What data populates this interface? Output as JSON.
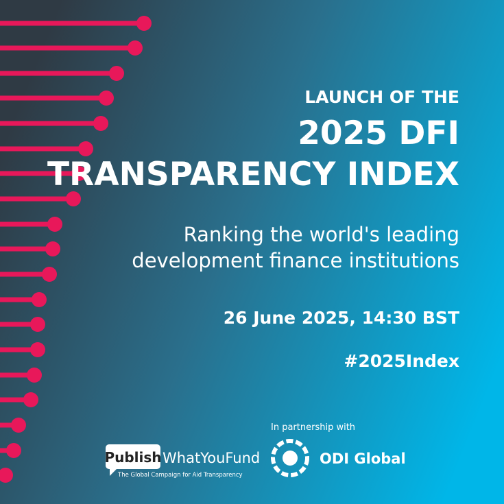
{
  "header": {
    "kicker": "LAUNCH OF THE",
    "title_lines": [
      "2025 DFI",
      "TRANSPARENCY INDEX"
    ]
  },
  "subtitle_lines": [
    "Ranking the world's leading",
    "development finance institutions"
  ],
  "date": "26 June 2025, 14:30 BST",
  "hashtag": "#2025Index",
  "partners": {
    "intro": "In partnership with",
    "publish_logo": {
      "box": "Publish",
      "rest": "WhatYouFund",
      "tagline": "The Global Campaign for Aid Transparency"
    },
    "odi_logo": {
      "name": "ODI Global"
    }
  }
}
